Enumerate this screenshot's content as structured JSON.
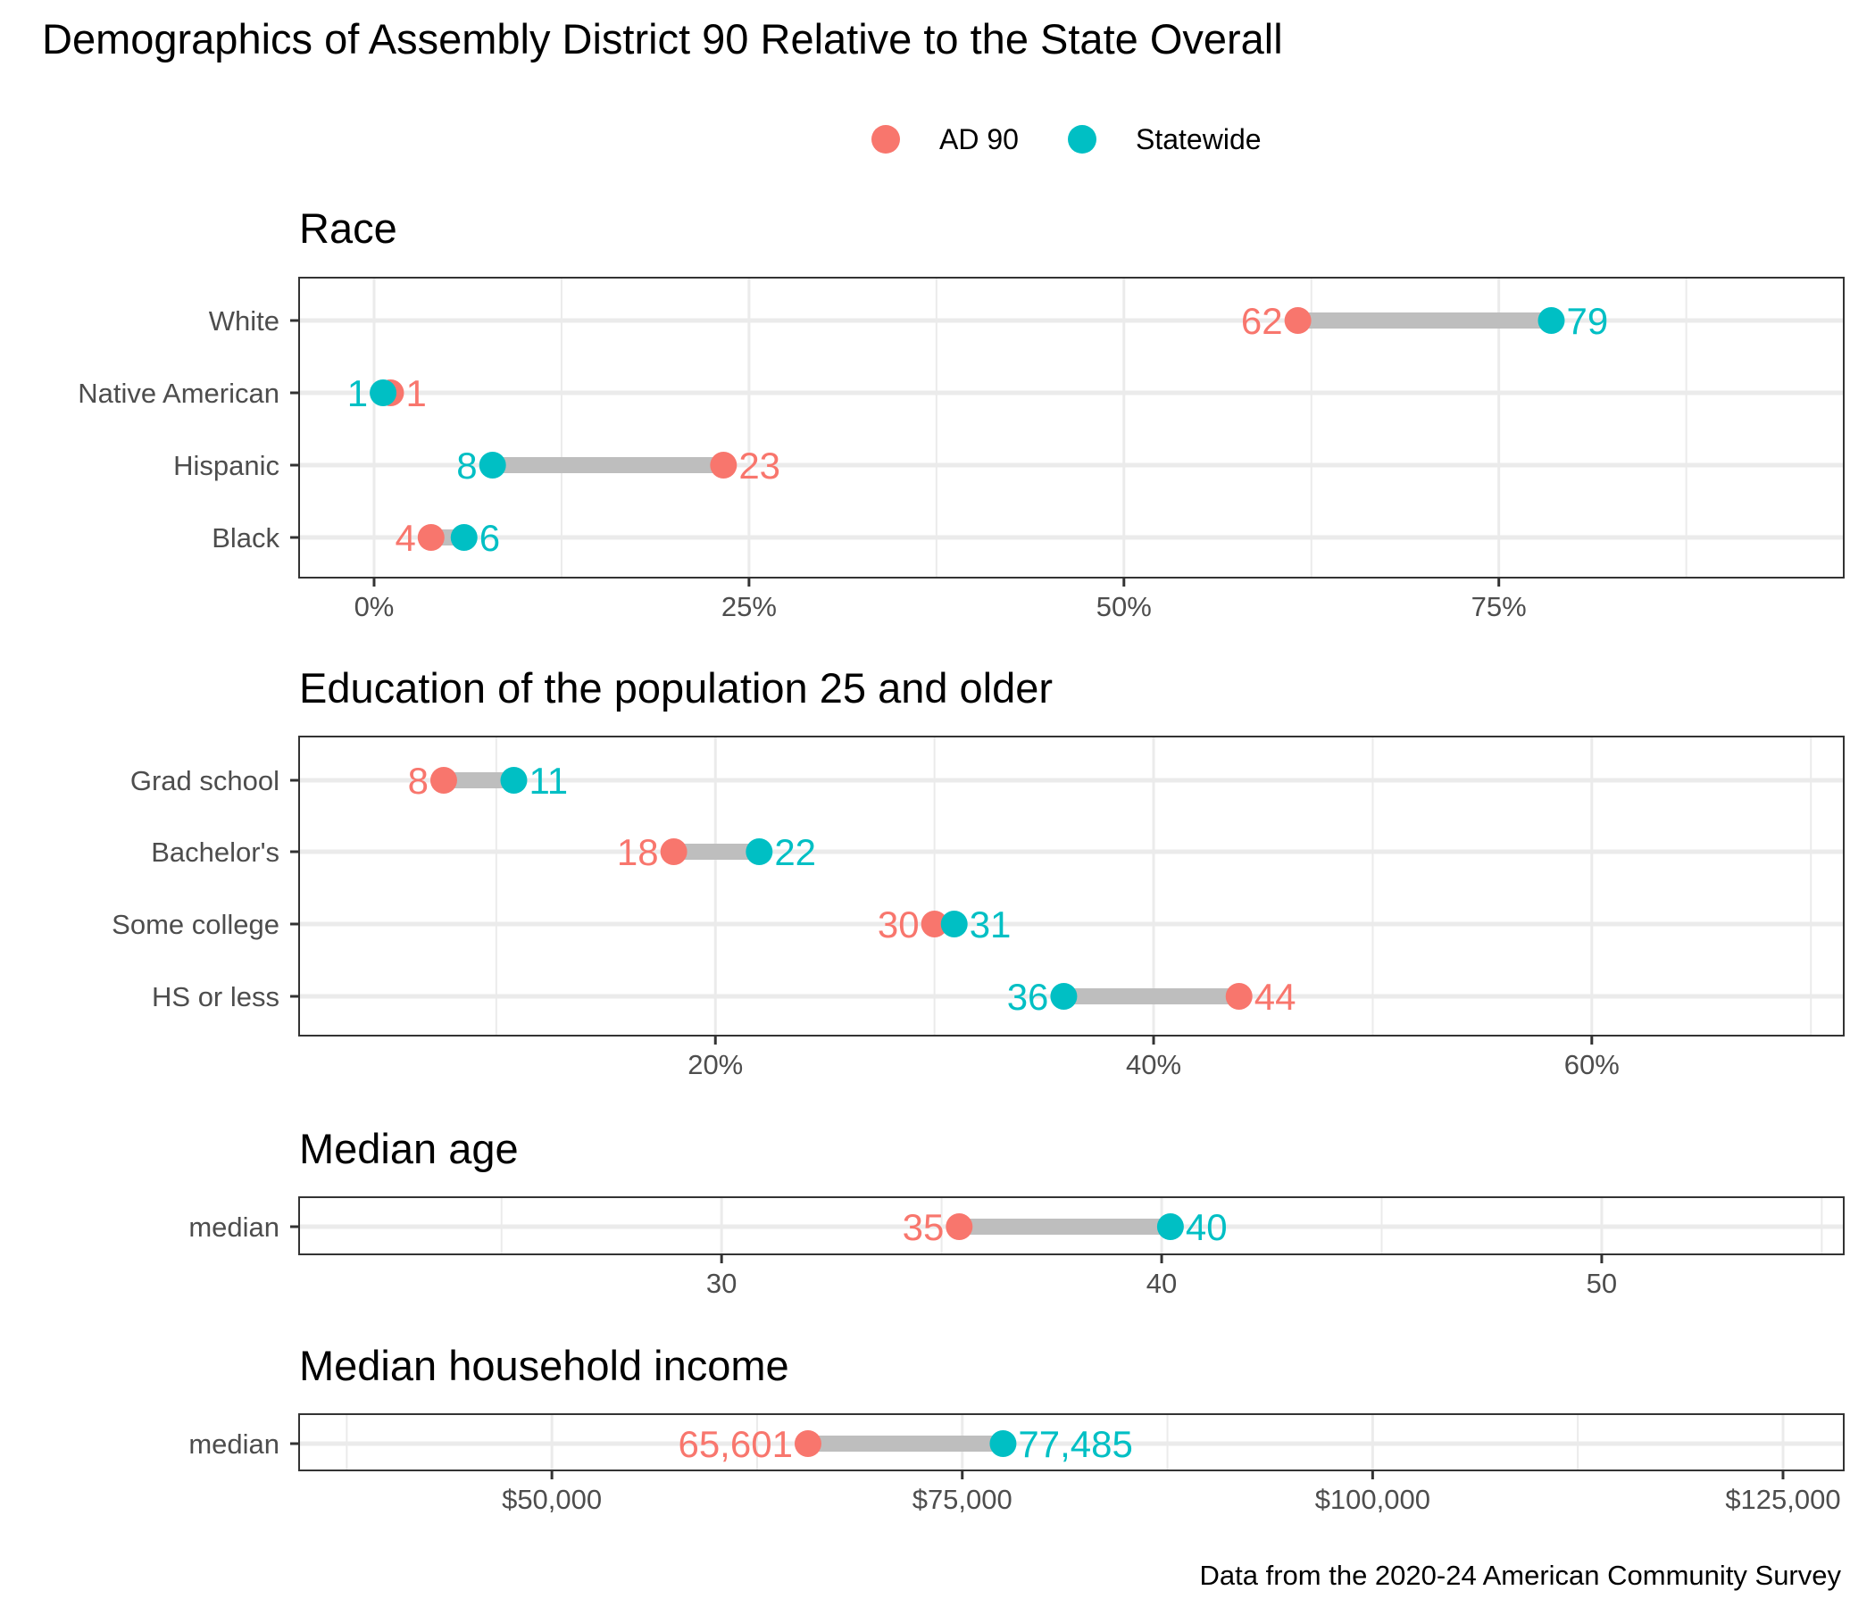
{
  "title": "Demographics of Assembly District 90 Relative to the State Overall",
  "caption": "Data from the 2020-24 American Community Survey",
  "legend": {
    "position": "top",
    "items": [
      {
        "label": "AD 90",
        "color": "#F8766D"
      },
      {
        "label": "Statewide",
        "color": "#00BFC4"
      }
    ]
  },
  "colors": {
    "ad90": "#F8766D",
    "statewide": "#00BFC4",
    "segment": "#BEBEBE",
    "grid": "#EBEBEB",
    "axis": "#333333"
  },
  "chart_data": [
    {
      "type": "dumbbell",
      "title": "Race",
      "xlim": [
        -5,
        98
      ],
      "ticks": [
        0,
        25,
        50,
        75
      ],
      "tick_labels": [
        "0%",
        "25%",
        "50%",
        "75%"
      ],
      "minor_ticks": [
        12.5,
        37.5,
        62.5,
        87.5
      ],
      "categories": [
        "White",
        "Native American",
        "Hispanic",
        "Black"
      ],
      "series": [
        {
          "name": "AD 90",
          "values": [
            61.6,
            1.1,
            23.3,
            3.8
          ],
          "labels": [
            "62",
            "1",
            "23",
            "4"
          ]
        },
        {
          "name": "Statewide",
          "values": [
            78.5,
            0.6,
            7.9,
            6.0
          ],
          "labels": [
            "79",
            "1",
            "8",
            "6"
          ]
        }
      ],
      "grid": true
    },
    {
      "type": "dumbbell",
      "title": "Education of the population 25 and older",
      "xlim": [
        1,
        71.5
      ],
      "ticks": [
        20,
        40,
        60
      ],
      "tick_labels": [
        "20%",
        "40%",
        "60%"
      ],
      "minor_ticks": [
        10,
        30,
        50,
        70
      ],
      "categories": [
        "Grad school",
        "Bachelor's",
        "Some college",
        "HS or less"
      ],
      "series": [
        {
          "name": "AD 90",
          "values": [
            7.6,
            18.1,
            30.0,
            43.9
          ],
          "labels": [
            "8",
            "18",
            "30",
            "44"
          ]
        },
        {
          "name": "Statewide",
          "values": [
            10.8,
            22.0,
            30.9,
            35.9
          ],
          "labels": [
            "11",
            "22",
            "31",
            "36"
          ]
        }
      ],
      "grid": true
    },
    {
      "type": "dumbbell",
      "title": "Median age",
      "xlim": [
        20.4,
        55.5
      ],
      "ticks": [
        30,
        40,
        50
      ],
      "tick_labels": [
        "30",
        "40",
        "50"
      ],
      "minor_ticks": [
        25,
        35,
        45,
        55
      ],
      "categories": [
        "median"
      ],
      "series": [
        {
          "name": "AD 90",
          "values": [
            35.4
          ],
          "labels": [
            "35"
          ]
        },
        {
          "name": "Statewide",
          "values": [
            40.2
          ],
          "labels": [
            "40"
          ]
        }
      ],
      "grid": true
    },
    {
      "type": "dumbbell",
      "title": "Median household income",
      "xlim": [
        34600,
        128700
      ],
      "ticks": [
        50000,
        75000,
        100000,
        125000
      ],
      "tick_labels": [
        "$50,000",
        "$75,000",
        "$100,000",
        "$125,000"
      ],
      "minor_ticks": [
        37500,
        62500,
        87500,
        112500
      ],
      "categories": [
        "median"
      ],
      "series": [
        {
          "name": "AD 90",
          "values": [
            65601
          ],
          "labels": [
            "65,601"
          ]
        },
        {
          "name": "Statewide",
          "values": [
            77485
          ],
          "labels": [
            "77,485"
          ]
        }
      ],
      "grid": true
    }
  ]
}
